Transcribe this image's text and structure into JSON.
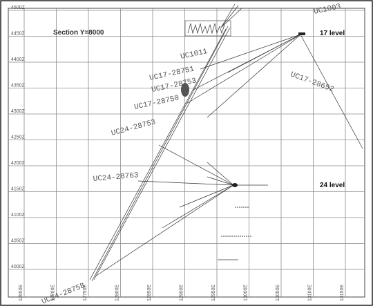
{
  "title": "Section Y=8000",
  "levels": [
    "17 level",
    "24 level"
  ],
  "y_axis": [
    "4500Z",
    "4450Z",
    "4400Z",
    "4350Z",
    "4300Z",
    "4250Z",
    "4200Z",
    "4150Z",
    "4100Z",
    "4050Z",
    "4000Z"
  ],
  "x_axis": [
    "12650E",
    "12700E",
    "12750E",
    "12800E",
    "12850E",
    "12900E",
    "12950E",
    "13000E",
    "13050E",
    "13100E",
    "13150E"
  ],
  "holes": [
    "UC1003",
    "UC1011",
    "UC17-28751",
    "UC17-28753",
    "UC17-28750",
    "UC17-28652",
    "UC24-28753",
    "UC24-28763",
    "UC24-28758"
  ]
}
